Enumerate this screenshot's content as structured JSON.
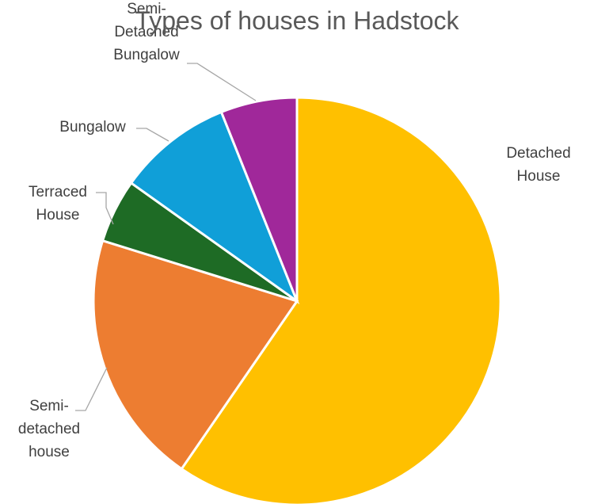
{
  "chart_data": {
    "type": "pie",
    "title": "Types of houses in Hadstock",
    "slices": [
      {
        "label": "Detached House",
        "value": 59,
        "color": "#ffc000"
      },
      {
        "label": "Semi-detached house",
        "value": 20,
        "color": "#ed7d31"
      },
      {
        "label": "Terraced House",
        "value": 5,
        "color": "#1e6b25"
      },
      {
        "label": "Bungalow",
        "value": 9,
        "color": "#109fd8"
      },
      {
        "label": "Semi-Detached Bungalow",
        "value": 6,
        "color": "#a0289a"
      }
    ],
    "legend": "none",
    "data_labels": "category name, outside with leader lines"
  }
}
